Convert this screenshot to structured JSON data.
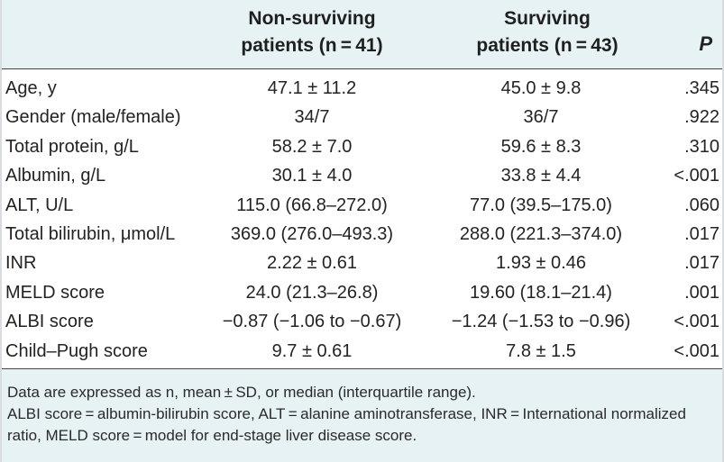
{
  "table": {
    "header": {
      "col1_line1": "Non-surviving",
      "col1_line2": "patients (n = 41)",
      "col2_line1": "Surviving",
      "col2_line2": "patients (n = 43)",
      "col3": "P"
    },
    "rows": [
      {
        "label": "Age, y",
        "non_surviving": "47.1 ± 11.2",
        "surviving": "45.0 ± 9.8",
        "p": ".345"
      },
      {
        "label": "Gender (male/female)",
        "non_surviving": "34/7",
        "surviving": "36/7",
        "p": ".922"
      },
      {
        "label": "Total protein, g/L",
        "non_surviving": "58.2 ± 7.0",
        "surviving": "59.6 ± 8.3",
        "p": ".310"
      },
      {
        "label": "Albumin, g/L",
        "non_surviving": "30.1 ± 4.0",
        "surviving": "33.8 ± 4.4",
        "p": "<.001"
      },
      {
        "label": "ALT, U/L",
        "non_surviving": "115.0 (66.8–272.0)",
        "surviving": "77.0 (39.5–175.0)",
        "p": ".060"
      },
      {
        "label": "Total bilirubin, μmol/L",
        "non_surviving": "369.0 (276.0–493.3)",
        "surviving": "288.0 (221.3–374.0)",
        "p": ".017"
      },
      {
        "label": "INR",
        "non_surviving": "2.22 ± 0.61",
        "surviving": "1.93 ± 0.46",
        "p": ".017"
      },
      {
        "label": "MELD score",
        "non_surviving": "24.0 (21.3–26.8)",
        "surviving": "19.60 (18.1–21.4)",
        "p": ".001"
      },
      {
        "label": "ALBI score",
        "non_surviving": "−0.87 (−1.06 to −0.67)",
        "surviving": "−1.24 (−1.53 to −0.96)",
        "p": "<.001"
      },
      {
        "label": "Child–Pugh score",
        "non_surviving": "9.7 ± 0.61",
        "surviving": "7.8 ± 1.5",
        "p": "<.001"
      }
    ],
    "footnotes": [
      "Data are expressed as n, mean ± SD, or median (interquartile range).",
      "ALBI score = albumin-bilirubin score, ALT = alanine aminotransferase, INR = International normalized",
      "ratio, MELD score = model for end-stage liver disease score."
    ]
  }
}
